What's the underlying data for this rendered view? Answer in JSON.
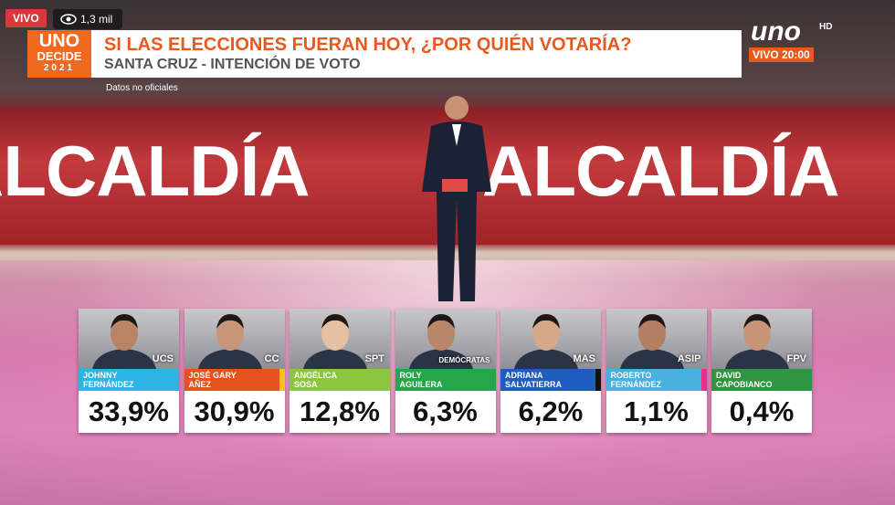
{
  "overlay": {
    "live": "VIVO",
    "views": "1,3 mil"
  },
  "logo": {
    "line1": "UNO",
    "line2": "DECIDE",
    "line3": "2021"
  },
  "header": {
    "title": "SI LAS ELECCIONES FUERAN HOY, ¿POR QUIÉN VOTARÍA?",
    "subtitle": "SANTA CRUZ - INTENCIÓN DE VOTO",
    "note": "Datos no oficiales"
  },
  "channel": {
    "name": "uno",
    "badge": "HD",
    "schedule": "VIVO 20:00"
  },
  "backdrop": {
    "left": "ALCALDÍA",
    "right": "ALCALDÍA"
  },
  "candidates": [
    {
      "party": "UCS",
      "name_line1": "JOHNNY",
      "name_line2": "FERNÁNDEZ",
      "percent": "33,9%"
    },
    {
      "party": "CC",
      "name_line1": "JOSÉ GARY",
      "name_line2": "AÑEZ",
      "percent": "30,9%"
    },
    {
      "party": "SPT",
      "name_line1": "ANGÉLICA",
      "name_line2": "SOSA",
      "percent": "12,8%"
    },
    {
      "party": "DEMÓCRATAS",
      "name_line1": "ROLY",
      "name_line2": "AGUILERA",
      "percent": "6,3%"
    },
    {
      "party": "MAS",
      "name_line1": "ADRIANA",
      "name_line2": "SALVATIERRA",
      "percent": "6,2%"
    },
    {
      "party": "ASIP",
      "name_line1": "ROBERTO",
      "name_line2": "FERNÁNDEZ",
      "percent": "1,1%"
    },
    {
      "party": "FPV",
      "name_line1": "DAVID",
      "name_line2": "CAPOBIANCO",
      "percent": "0,4%"
    }
  ]
}
